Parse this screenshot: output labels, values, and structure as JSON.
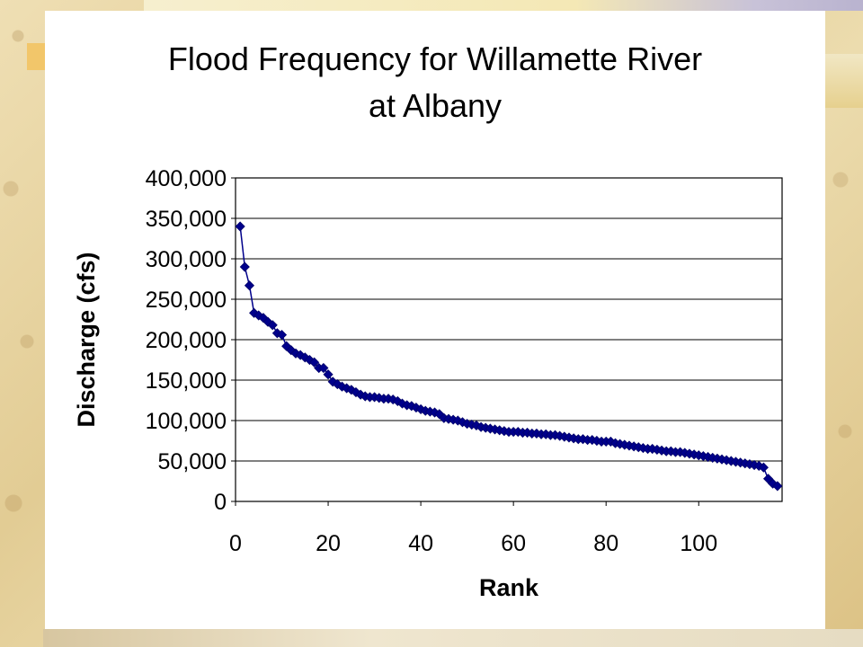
{
  "slide": {
    "title_line1": "Flood Frequency for Willamette River",
    "title_line2": "at Albany"
  },
  "chart_data": {
    "type": "line",
    "title": "Flood Frequency for Willamette River at Albany",
    "xlabel": "Rank",
    "ylabel": "Discharge (cfs)",
    "xlim": [
      0,
      118
    ],
    "ylim": [
      0,
      400000
    ],
    "xticks": [
      0,
      20,
      40,
      60,
      80,
      100
    ],
    "xtick_labels": [
      "0",
      "20",
      "40",
      "60",
      "80",
      "100"
    ],
    "yticks": [
      0,
      50000,
      100000,
      150000,
      200000,
      250000,
      300000,
      350000,
      400000
    ],
    "ytick_labels": [
      "0",
      "50,000",
      "100,000",
      "150,000",
      "200,000",
      "250,000",
      "300,000",
      "350,000",
      "400,000"
    ],
    "grid": "horizontal",
    "marker": "diamond",
    "color": "#00008b",
    "series": [
      {
        "x": [
          1,
          2,
          3,
          4,
          5,
          6,
          7,
          8,
          9,
          10,
          11,
          12,
          13,
          14,
          15,
          16,
          17,
          18,
          19,
          20,
          21,
          22,
          23,
          24,
          25,
          26,
          27,
          28,
          29,
          30,
          31,
          32,
          33,
          34,
          35,
          36,
          37,
          38,
          39,
          40,
          41,
          42,
          43,
          44,
          45,
          46,
          47,
          48,
          49,
          50,
          51,
          52,
          53,
          54,
          55,
          56,
          57,
          58,
          59,
          60,
          61,
          62,
          63,
          64,
          65,
          66,
          67,
          68,
          69,
          70,
          71,
          72,
          73,
          74,
          75,
          76,
          77,
          78,
          79,
          80,
          81,
          82,
          83,
          84,
          85,
          86,
          87,
          88,
          89,
          90,
          91,
          92,
          93,
          94,
          95,
          96,
          97,
          98,
          99,
          100,
          101,
          102,
          103,
          104,
          105,
          106,
          107,
          108,
          109,
          110,
          111,
          112,
          113,
          114,
          115,
          116,
          117
        ],
        "y": [
          340000,
          290000,
          267000,
          233000,
          230000,
          227000,
          222000,
          218000,
          208000,
          206000,
          192000,
          187000,
          183000,
          181000,
          178000,
          175000,
          172000,
          165000,
          165000,
          157000,
          148000,
          145000,
          142000,
          140000,
          138000,
          135000,
          132000,
          130000,
          129000,
          129000,
          128000,
          127000,
          127000,
          126000,
          124000,
          121000,
          119000,
          118000,
          116000,
          114000,
          112000,
          111000,
          110000,
          108000,
          103000,
          102000,
          101000,
          100000,
          98000,
          96000,
          95000,
          94000,
          92000,
          91000,
          90000,
          89000,
          88000,
          87000,
          86000,
          86000,
          86000,
          85000,
          85000,
          84000,
          84000,
          83000,
          83000,
          82000,
          82000,
          81000,
          80000,
          79000,
          78000,
          77000,
          77000,
          76000,
          76000,
          75000,
          74000,
          74000,
          74000,
          72000,
          71000,
          70000,
          69000,
          68000,
          67000,
          66000,
          65000,
          65000,
          64000,
          63000,
          62000,
          62000,
          61000,
          61000,
          60000,
          59000,
          58000,
          57000,
          56000,
          55000,
          54000,
          53000,
          52000,
          51000,
          50000,
          49000,
          48000,
          47000,
          46000,
          45000,
          44000,
          42000,
          28000,
          22000,
          19000
        ]
      }
    ]
  }
}
